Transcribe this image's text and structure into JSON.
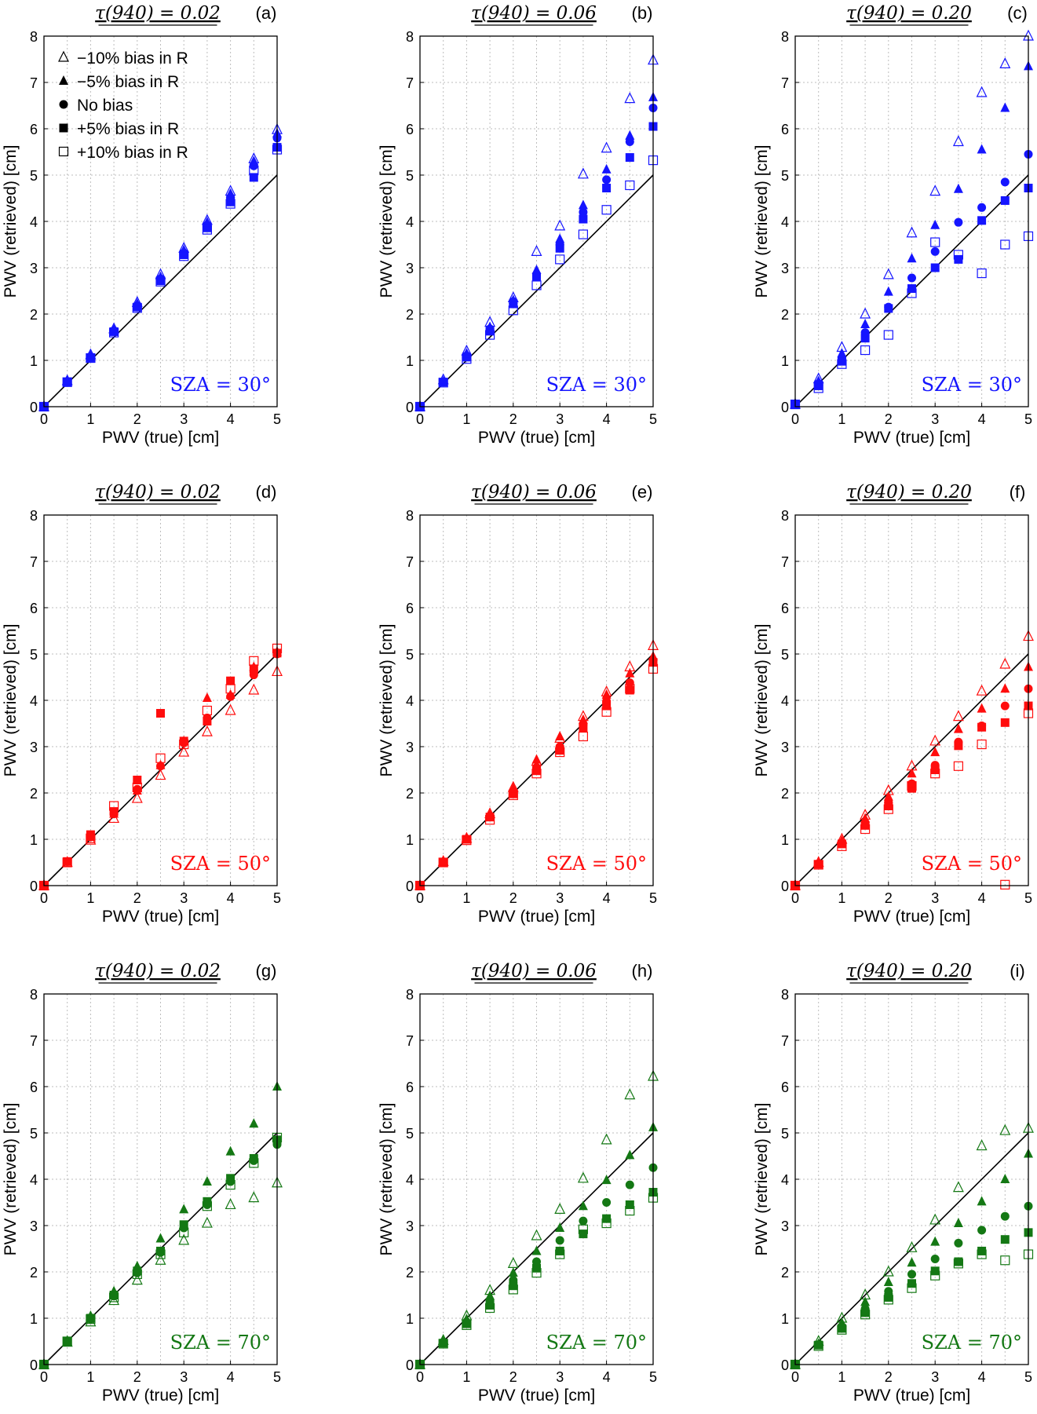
{
  "legend": {
    "items": [
      {
        "marker": "triangle-open",
        "label": "−10% bias in R"
      },
      {
        "marker": "triangle-filled",
        "label": "−5% bias in R"
      },
      {
        "marker": "circle-filled",
        "label": "No bias"
      },
      {
        "marker": "square-filled",
        "label": "+5% bias in R"
      },
      {
        "marker": "square-open",
        "label": "+10% bias in R"
      }
    ]
  },
  "colors": {
    "sza30": "#1515ff",
    "sza50": "#ff0d0d",
    "sza70": "#147814",
    "line": "#000000"
  },
  "chart_data": [
    {
      "type": "scatter",
      "panel": "(a)",
      "title": "τ(940) = 0.02",
      "annotation": "SZA = 30°",
      "color_key": "sza30",
      "xlabel": "PWV (true) [cm]",
      "ylabel": "PWV (retrieved) [cm]",
      "xlim": [
        0,
        5
      ],
      "ylim": [
        0,
        8
      ],
      "grid": true,
      "x": [
        0,
        0.5,
        1,
        1.5,
        2,
        2.5,
        3,
        3.5,
        4,
        4.5,
        5
      ],
      "series": [
        {
          "name": "−10% bias in R",
          "marker": "triangle-open",
          "values": [
            0,
            0.56,
            1.12,
            1.68,
            2.25,
            2.85,
            3.42,
            4.02,
            4.65,
            5.35,
            5.98
          ]
        },
        {
          "name": "−5% bias in R",
          "marker": "triangle-filled",
          "values": [
            0,
            0.55,
            1.1,
            1.66,
            2.22,
            2.8,
            3.38,
            3.98,
            4.6,
            5.3,
            5.9
          ]
        },
        {
          "name": "No bias",
          "marker": "circle-filled",
          "values": [
            0,
            0.54,
            1.08,
            1.64,
            2.18,
            2.76,
            3.32,
            3.92,
            4.52,
            5.2,
            5.8
          ]
        },
        {
          "name": "+5% bias in R",
          "marker": "square-filled",
          "values": [
            0,
            0.53,
            1.06,
            1.62,
            2.15,
            2.72,
            3.28,
            3.86,
            4.42,
            4.95,
            5.6
          ]
        },
        {
          "name": "+10% bias in R",
          "marker": "square-open",
          "values": [
            0,
            0.53,
            1.05,
            1.6,
            2.13,
            2.7,
            3.25,
            3.82,
            4.38,
            5.1,
            5.55
          ]
        }
      ]
    },
    {
      "type": "scatter",
      "panel": "(b)",
      "title": "τ(940) = 0.06",
      "annotation": "SZA = 30°",
      "color_key": "sza30",
      "xlabel": "PWV (true) [cm]",
      "ylabel": "PWV (retrieved) [cm]",
      "xlim": [
        0,
        5
      ],
      "ylim": [
        0,
        8
      ],
      "grid": true,
      "x": [
        0,
        0.5,
        1,
        1.5,
        2,
        2.5,
        3,
        3.5,
        4,
        4.5,
        5
      ],
      "series": [
        {
          "name": "−10% bias in R",
          "marker": "triangle-open",
          "values": [
            0,
            0.58,
            1.2,
            1.82,
            2.35,
            3.35,
            3.9,
            5.02,
            5.58,
            6.65,
            7.48
          ]
        },
        {
          "name": "−5% bias in R",
          "marker": "triangle-filled",
          "values": [
            0,
            0.55,
            1.15,
            1.72,
            2.3,
            2.95,
            3.62,
            4.35,
            5.12,
            5.85,
            6.68
          ]
        },
        {
          "name": "No bias",
          "marker": "circle-filled",
          "values": [
            0,
            0.54,
            1.1,
            1.68,
            2.27,
            2.85,
            3.5,
            4.2,
            4.9,
            5.72,
            6.45
          ]
        },
        {
          "name": "+5% bias in R",
          "marker": "square-filled",
          "values": [
            0,
            0.53,
            1.07,
            1.63,
            2.22,
            2.8,
            3.42,
            4.05,
            4.72,
            5.38,
            6.05
          ]
        },
        {
          "name": "+10% bias in R",
          "marker": "square-open",
          "values": [
            0,
            0.52,
            1.03,
            1.55,
            2.08,
            2.62,
            3.18,
            3.72,
            4.25,
            4.78,
            5.32
          ]
        }
      ]
    },
    {
      "type": "scatter",
      "panel": "(c)",
      "title": "τ(940) = 0.20",
      "annotation": "SZA = 30°",
      "color_key": "sza30",
      "xlabel": "PWV (true) [cm]",
      "ylabel": "PWV (retrieved) [cm]",
      "xlim": [
        0,
        5
      ],
      "ylim": [
        0,
        8
      ],
      "grid": true,
      "x": [
        0,
        0.5,
        1,
        1.5,
        2,
        2.5,
        3,
        3.5,
        4,
        4.5,
        5
      ],
      "series": [
        {
          "name": "−10% bias in R",
          "marker": "triangle-open",
          "values": [
            0.05,
            0.6,
            1.28,
            2.0,
            2.85,
            3.75,
            4.65,
            5.72,
            6.78,
            7.4,
            8.0
          ]
        },
        {
          "name": "−5% bias in R",
          "marker": "triangle-filled",
          "values": [
            0.05,
            0.55,
            1.15,
            1.78,
            2.48,
            3.2,
            3.92,
            4.7,
            5.55,
            6.45,
            7.35
          ]
        },
        {
          "name": "No bias",
          "marker": "circle-filled",
          "values": [
            0.05,
            0.5,
            1.05,
            1.6,
            2.15,
            2.78,
            3.35,
            3.98,
            4.3,
            4.85,
            5.45
          ]
        },
        {
          "name": "+5% bias in R",
          "marker": "square-filled",
          "values": [
            0.05,
            0.45,
            0.98,
            1.48,
            2.12,
            2.55,
            3.0,
            3.18,
            4.02,
            4.45,
            4.72
          ]
        },
        {
          "name": "+10% bias in R",
          "marker": "square-open",
          "values": [
            0.05,
            0.4,
            0.92,
            1.22,
            1.55,
            2.45,
            3.55,
            3.28,
            2.88,
            3.5,
            3.68
          ]
        }
      ]
    },
    {
      "type": "scatter",
      "panel": "(d)",
      "title": "τ(940) = 0.02",
      "annotation": "SZA = 50°",
      "color_key": "sza50",
      "xlabel": "PWV (true) [cm]",
      "ylabel": "PWV (retrieved) [cm]",
      "xlim": [
        0,
        5
      ],
      "ylim": [
        0,
        8
      ],
      "grid": true,
      "x": [
        0,
        0.5,
        1,
        1.5,
        2,
        2.5,
        3,
        3.5,
        4,
        4.5,
        5
      ],
      "series": [
        {
          "name": "−10% bias in R",
          "marker": "triangle-open",
          "values": [
            0,
            0.5,
            0.98,
            1.45,
            1.88,
            2.38,
            2.88,
            3.32,
            3.78,
            4.22,
            4.62
          ]
        },
        {
          "name": "−5% bias in R",
          "marker": "triangle-filled",
          "values": [
            0,
            0.52,
            1.05,
            1.55,
            2.05,
            2.6,
            3.12,
            4.05,
            4.12,
            4.72,
            5.05
          ]
        },
        {
          "name": "No bias",
          "marker": "circle-filled",
          "values": [
            0,
            0.52,
            1.05,
            1.55,
            2.08,
            2.58,
            3.08,
            3.62,
            4.08,
            4.55,
            5.0
          ]
        },
        {
          "name": "+5% bias in R",
          "marker": "square-filled",
          "values": [
            0,
            0.52,
            1.1,
            1.6,
            2.28,
            3.72,
            3.12,
            3.55,
            4.42,
            4.68,
            5.02
          ]
        },
        {
          "name": "+10% bias in R",
          "marker": "square-open",
          "values": [
            0,
            0.5,
            1.02,
            1.72,
            2.12,
            2.75,
            3.05,
            3.78,
            4.25,
            4.85,
            5.12
          ]
        }
      ]
    },
    {
      "type": "scatter",
      "panel": "(e)",
      "title": "τ(940) = 0.06",
      "annotation": "SZA = 50°",
      "color_key": "sza50",
      "xlabel": "PWV (true) [cm]",
      "ylabel": "PWV (retrieved) [cm]",
      "xlim": [
        0,
        5
      ],
      "ylim": [
        0,
        8
      ],
      "grid": true,
      "x": [
        0,
        0.5,
        1,
        1.5,
        2,
        2.5,
        3,
        3.5,
        4,
        4.5,
        5
      ],
      "series": [
        {
          "name": "−10% bias in R",
          "marker": "triangle-open",
          "values": [
            0,
            0.52,
            1.02,
            1.55,
            2.12,
            2.68,
            3.18,
            3.65,
            4.18,
            4.72,
            5.18
          ]
        },
        {
          "name": "−5% bias in R",
          "marker": "triangle-filled",
          "values": [
            0,
            0.52,
            1.02,
            1.53,
            2.1,
            2.72,
            3.22,
            3.58,
            4.12,
            4.58,
            4.95
          ]
        },
        {
          "name": "No bias",
          "marker": "circle-filled",
          "values": [
            0,
            0.5,
            1.0,
            1.5,
            2.02,
            2.55,
            3.0,
            3.48,
            3.98,
            4.38,
            4.82
          ]
        },
        {
          "name": "+5% bias in R",
          "marker": "square-filled",
          "values": [
            0,
            0.5,
            1.0,
            1.48,
            1.98,
            2.48,
            2.92,
            3.4,
            3.88,
            4.22,
            4.82
          ]
        },
        {
          "name": "+10% bias in R",
          "marker": "square-open",
          "values": [
            0,
            0.5,
            0.98,
            1.42,
            1.95,
            2.42,
            2.88,
            3.22,
            3.75,
            4.25,
            4.68
          ]
        }
      ]
    },
    {
      "type": "scatter",
      "panel": "(f)",
      "title": "τ(940) = 0.20",
      "annotation": "SZA = 50°",
      "color_key": "sza50",
      "xlabel": "PWV (true) [cm]",
      "ylabel": "PWV (retrieved) [cm]",
      "xlim": [
        0,
        5
      ],
      "ylim": [
        0,
        8
      ],
      "grid": true,
      "x": [
        0,
        0.5,
        1,
        1.5,
        2,
        2.5,
        3,
        3.5,
        4,
        4.5,
        5
      ],
      "series": [
        {
          "name": "−10% bias in R",
          "marker": "triangle-open",
          "values": [
            0,
            0.5,
            1.0,
            1.52,
            2.05,
            2.58,
            3.12,
            3.65,
            4.2,
            4.78,
            5.38
          ]
        },
        {
          "name": "−5% bias in R",
          "marker": "triangle-filled",
          "values": [
            0,
            0.48,
            0.97,
            1.45,
            1.92,
            2.42,
            2.88,
            3.38,
            3.82,
            4.25,
            4.72
          ]
        },
        {
          "name": "No bias",
          "marker": "circle-filled",
          "values": [
            0,
            0.47,
            0.92,
            1.35,
            1.8,
            2.2,
            2.6,
            3.1,
            3.45,
            3.88,
            4.25
          ]
        },
        {
          "name": "+5% bias in R",
          "marker": "square-filled",
          "values": [
            0,
            0.46,
            0.9,
            1.3,
            1.72,
            2.1,
            2.5,
            3.02,
            3.42,
            3.52,
            3.88
          ]
        },
        {
          "name": "+10% bias in R",
          "marker": "square-open",
          "values": [
            0,
            0.45,
            0.85,
            1.22,
            1.65,
            2.15,
            2.42,
            2.58,
            3.05,
            0.02,
            3.72
          ]
        }
      ]
    },
    {
      "type": "scatter",
      "panel": "(g)",
      "title": "τ(940) = 0.02",
      "annotation": "SZA = 70°",
      "color_key": "sza70",
      "xlabel": "PWV (true) [cm]",
      "ylabel": "PWV (retrieved) [cm]",
      "xlim": [
        0,
        5
      ],
      "ylim": [
        0,
        8
      ],
      "grid": true,
      "x": [
        0,
        0.5,
        1,
        1.5,
        2,
        2.5,
        3,
        3.5,
        4,
        4.5,
        5
      ],
      "series": [
        {
          "name": "−10% bias in R",
          "marker": "triangle-open",
          "values": [
            0,
            0.48,
            0.92,
            1.38,
            1.82,
            2.25,
            2.68,
            3.05,
            3.45,
            3.6,
            3.92
          ]
        },
        {
          "name": "−5% bias in R",
          "marker": "triangle-filled",
          "values": [
            0,
            0.52,
            1.05,
            1.58,
            2.12,
            2.72,
            3.35,
            3.95,
            4.6,
            5.2,
            6.0
          ]
        },
        {
          "name": "No bias",
          "marker": "circle-filled",
          "values": [
            0,
            0.5,
            0.98,
            1.48,
            1.98,
            2.42,
            2.95,
            3.45,
            3.95,
            4.4,
            4.75
          ]
        },
        {
          "name": "+5% bias in R",
          "marker": "square-filled",
          "values": [
            0,
            0.5,
            1.0,
            1.5,
            2.02,
            2.45,
            3.02,
            3.52,
            4.02,
            4.45,
            4.85
          ]
        },
        {
          "name": "+10% bias in R",
          "marker": "square-open",
          "values": [
            0,
            0.5,
            0.98,
            1.45,
            1.95,
            2.38,
            2.85,
            3.42,
            3.88,
            4.35,
            4.9
          ]
        }
      ]
    },
    {
      "type": "scatter",
      "panel": "(h)",
      "title": "τ(940) = 0.06",
      "annotation": "SZA = 70°",
      "color_key": "sza70",
      "xlabel": "PWV (true) [cm]",
      "ylabel": "PWV (retrieved) [cm]",
      "xlim": [
        0,
        5
      ],
      "ylim": [
        0,
        8
      ],
      "grid": true,
      "x": [
        0,
        0.5,
        1,
        1.5,
        2,
        2.5,
        3,
        3.5,
        4,
        4.5,
        5
      ],
      "series": [
        {
          "name": "−10% bias in R",
          "marker": "triangle-open",
          "values": [
            0,
            0.52,
            1.05,
            1.6,
            2.18,
            2.78,
            3.35,
            4.02,
            4.85,
            5.82,
            6.22
          ]
        },
        {
          "name": "−5% bias in R",
          "marker": "triangle-filled",
          "values": [
            0,
            0.5,
            0.98,
            1.48,
            1.98,
            2.45,
            2.95,
            3.42,
            3.98,
            4.52,
            5.12
          ]
        },
        {
          "name": "No bias",
          "marker": "circle-filled",
          "values": [
            0,
            0.48,
            0.92,
            1.38,
            1.82,
            2.22,
            2.68,
            3.1,
            3.5,
            3.88,
            4.25
          ]
        },
        {
          "name": "+5% bias in R",
          "marker": "square-filled",
          "values": [
            0,
            0.46,
            0.88,
            1.28,
            1.7,
            2.08,
            2.45,
            2.82,
            3.15,
            3.45,
            3.72
          ]
        },
        {
          "name": "+10% bias in R",
          "marker": "square-open",
          "values": [
            0,
            0.45,
            0.85,
            1.22,
            1.62,
            1.98,
            2.38,
            2.92,
            3.05,
            3.32,
            3.6
          ]
        }
      ]
    },
    {
      "type": "scatter",
      "panel": "(i)",
      "title": "τ(940) = 0.20",
      "annotation": "SZA = 70°",
      "color_key": "sza70",
      "xlabel": "PWV (true) [cm]",
      "ylabel": "PWV (retrieved) [cm]",
      "xlim": [
        0,
        5
      ],
      "ylim": [
        0,
        8
      ],
      "grid": true,
      "x": [
        0,
        0.5,
        1,
        1.5,
        2,
        2.5,
        3,
        3.5,
        4,
        4.5,
        5
      ],
      "series": [
        {
          "name": "−10% bias in R",
          "marker": "triangle-open",
          "values": [
            0,
            0.5,
            1.0,
            1.5,
            2.0,
            2.52,
            3.12,
            3.82,
            4.72,
            5.05,
            5.1
          ]
        },
        {
          "name": "−5% bias in R",
          "marker": "triangle-filled",
          "values": [
            0,
            0.45,
            0.9,
            1.35,
            1.78,
            2.2,
            2.65,
            3.05,
            3.52,
            4.0,
            4.55
          ]
        },
        {
          "name": "No bias",
          "marker": "circle-filled",
          "values": [
            0,
            0.43,
            0.82,
            1.2,
            1.58,
            1.95,
            2.28,
            2.62,
            2.9,
            3.2,
            3.42
          ]
        },
        {
          "name": "+5% bias in R",
          "marker": "square-filled",
          "values": [
            0,
            0.42,
            0.78,
            1.12,
            1.45,
            1.75,
            2.02,
            2.22,
            2.45,
            2.7,
            2.85
          ]
        },
        {
          "name": "+10% bias in R",
          "marker": "square-open",
          "values": [
            0,
            0.4,
            0.75,
            1.08,
            1.4,
            1.65,
            1.92,
            2.18,
            2.38,
            2.25,
            2.38
          ]
        }
      ]
    }
  ]
}
